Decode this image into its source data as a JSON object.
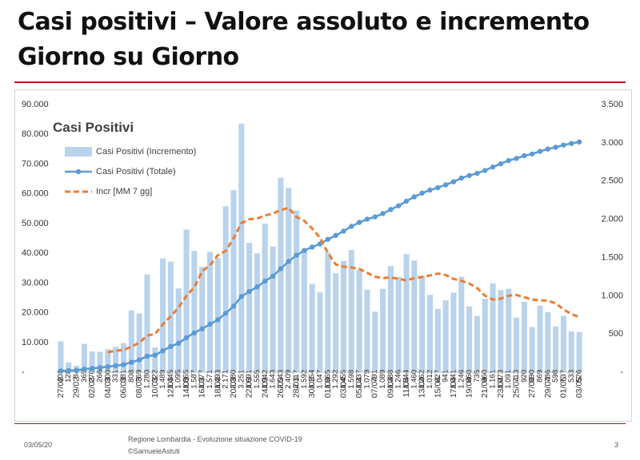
{
  "slide": {
    "title_line1": "Casi positivi – Valore assoluto e incremento",
    "title_line2": "Giorno su Giorno",
    "footer_date": "03/05/20",
    "footer_source_line1": "Regione Lombardia - Evoluzione situazione COVID-19",
    "footer_source_line2": "©SamueleAstuti",
    "page_number": "3",
    "accent_color": "#b11b22"
  },
  "chart_data": {
    "type": "bar",
    "title": "Casi Positivi",
    "dates": [
      "27/02",
      "28/02",
      "29/02",
      "01/03",
      "02/03",
      "03/03",
      "04/03",
      "05/03",
      "06/03",
      "07/03",
      "08/03",
      "09/03",
      "10/03",
      "11/03",
      "12/03",
      "13/03",
      "14/03",
      "15/03",
      "16/03",
      "17/03",
      "18/03",
      "19/03",
      "20/03",
      "21/03",
      "22/03",
      "23/03",
      "24/03",
      "25/03",
      "26/03",
      "27/03",
      "28/03",
      "29/03",
      "30/03",
      "31/03",
      "01/04",
      "02/04",
      "03/04",
      "04/04",
      "05/04",
      "06/04",
      "07/04",
      "08/04",
      "09/04",
      "10/04",
      "11/04",
      "12/04",
      "13/04",
      "14/04",
      "15/04",
      "16/04",
      "17/04",
      "18/04",
      "19/04",
      "20/04",
      "21/04",
      "22/04",
      "23/04",
      "24/04",
      "25/04",
      "26/04",
      "27/04",
      "28/04",
      "29/04",
      "30/04",
      "01/05",
      "02/05",
      "03/05"
    ],
    "x_tick_labels": [
      "27/02",
      "29/02",
      "02/03",
      "04/03",
      "06/03",
      "08/03",
      "10/03",
      "12/03",
      "14/03",
      "16/03",
      "18/03",
      "20/03",
      "22/03",
      "24/03",
      "26/03",
      "28/03",
      "30/03",
      "01/04",
      "03/04",
      "05/04",
      "07/04",
      "09/04",
      "11/04",
      "13/04",
      "15/04",
      "17/04",
      "19/04",
      "21/04",
      "23/04",
      "25/04",
      "27/04",
      "29/04",
      "01/05",
      "03/05"
    ],
    "series": [
      {
        "name": "Casi Positivi (Incremento)",
        "kind": "bar",
        "axis": "right",
        "color": "#b9d3ec",
        "values": [
          403,
          128,
          84,
          369,
          270,
          266,
          300,
          331,
          381,
          808,
          769,
          1280,
          322,
          1489,
          1445,
          1095,
          1865,
          1587,
          1377,
          1571,
          1493,
          2171,
          2380,
          3251,
          1691,
          1555,
          1942,
          1643,
          2543,
          2409,
          2117,
          1592,
          1154,
          1047,
          1565,
          1292,
          1455,
          1598,
          1337,
          1079,
          791,
          1089,
          1388,
          1246,
          1544,
          1460,
          1262,
          1012,
          827,
          941,
          1041,
          1246,
          860,
          735,
          960,
          1161,
          1073,
          1091,
          713,
          920,
          590,
          869,
          786,
          598,
          737,
          533,
          526
        ],
        "labels": [
          "403",
          "128",
          "84",
          "369",
          "270",
          "266",
          "300",
          "331",
          "381",
          "808",
          "769",
          "1.280",
          "322",
          "1.489",
          "1.445",
          "1.095",
          "1.865",
          "1.587",
          "1.377",
          "1.571",
          "1.493",
          "2.171",
          "2.380",
          "3.251",
          "1.691",
          "1.555",
          "1.942",
          "1.643",
          "2.543",
          "2.409",
          "2.117",
          "1.592",
          "1.154",
          "1.047",
          "1.565",
          "1.292",
          "1.455",
          "1.598",
          "1.337",
          "1.079",
          "791",
          "1.089",
          "1.388",
          "1.246",
          "1.544",
          "1.460",
          "1.262",
          "1.012",
          "827",
          "941",
          "1.041",
          "1.246",
          "860",
          "735",
          "960",
          "1.161",
          "1.073",
          "1.091",
          "713",
          "920",
          "590",
          "869",
          "786",
          "598",
          "737",
          "533",
          "526"
        ]
      },
      {
        "name": "Casi Positivi (Totale)",
        "kind": "line-markers",
        "axis": "left",
        "color": "#5b9bd5",
        "values": [
          403,
          531,
          615,
          984,
          1254,
          1520,
          1820,
          2151,
          2532,
          3340,
          4109,
          5389,
          5711,
          7200,
          8645,
          9740,
          11605,
          13192,
          14569,
          16140,
          17633,
          19804,
          22184,
          25435,
          27126,
          28681,
          30623,
          32266,
          34809,
          37218,
          39335,
          40927,
          42081,
          43128,
          44693,
          45985,
          47440,
          49038,
          50375,
          51454,
          52245,
          53334,
          54722,
          55968,
          57512,
          58972,
          60234,
          61246,
          62073,
          63014,
          64055,
          65301,
          66161,
          66896,
          67856,
          69017,
          70090,
          71181,
          71894,
          72814,
          73404,
          74273,
          75059,
          75657,
          76394,
          76927,
          77453
        ]
      },
      {
        "name": "Incr [MM 7 gg]",
        "kind": "dashed-line",
        "axis": "right",
        "color": "#ed7d31",
        "values": [
          null,
          null,
          null,
          null,
          null,
          null,
          260,
          281,
          290,
          333,
          385,
          479,
          499,
          625,
          730,
          845,
          998,
          1110,
          1320,
          1400,
          1530,
          1586,
          1750,
          1950,
          2000,
          2010,
          2050,
          2075,
          2120,
          2150,
          2030,
          1980,
          1880,
          1760,
          1560,
          1410,
          1380,
          1370,
          1350,
          1300,
          1250,
          1230,
          1240,
          1220,
          1200,
          1230,
          1245,
          1265,
          1290,
          1270,
          1220,
          1195,
          1160,
          1100,
          1000,
          950,
          960,
          1000,
          1010,
          980,
          950,
          940,
          935,
          900,
          820,
          760,
          720
        ]
      }
    ],
    "y_left": {
      "min": 0,
      "max": 90000,
      "step": 10000,
      "tick_labels": [
        "-",
        "10.000",
        "20.000",
        "30.000",
        "40.000",
        "50.000",
        "60.000",
        "70.000",
        "80.000",
        "90.000"
      ]
    },
    "y_right": {
      "min": 0,
      "max": 3500,
      "step": 500,
      "tick_labels": [
        "-",
        "500",
        "1.000",
        "1.500",
        "2.000",
        "2.500",
        "3.000",
        "3.500"
      ]
    },
    "legend_position": "top-left",
    "grid": false
  }
}
